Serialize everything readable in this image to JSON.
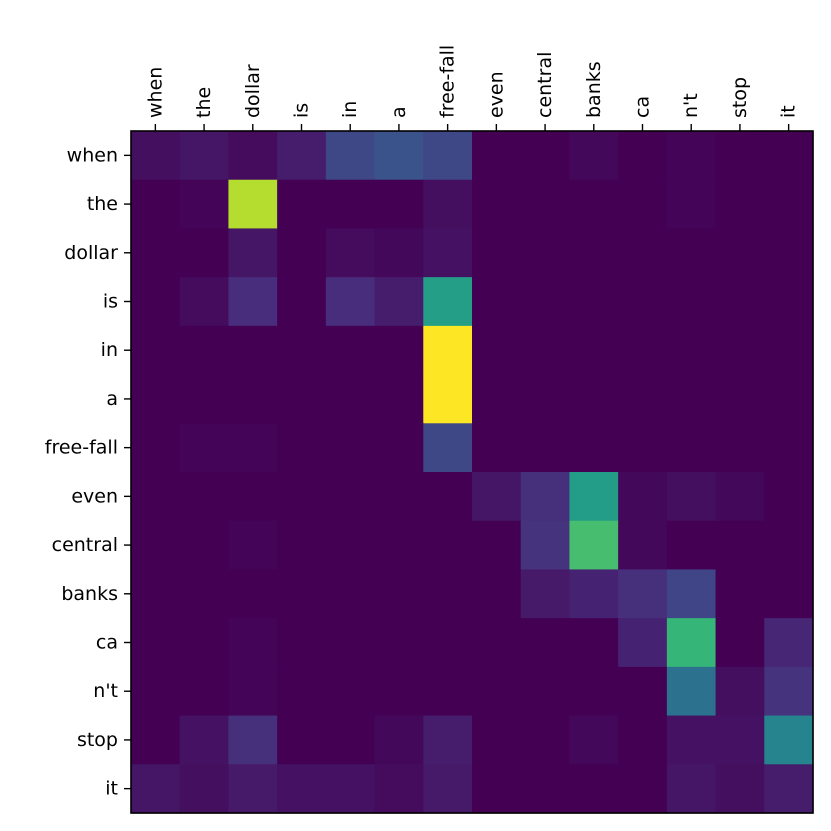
{
  "chart_data": {
    "type": "heatmap",
    "title": "",
    "xlabel": "",
    "ylabel": "",
    "colormap": "viridis",
    "value_range": [
      0,
      1
    ],
    "grid": false,
    "x_tick_labels": [
      "when",
      "the",
      "dollar",
      "is",
      "in",
      "a",
      "free-fall",
      "even",
      "central",
      "banks",
      "ca",
      "n't",
      "stop",
      "it"
    ],
    "y_tick_labels": [
      "when",
      "the",
      "dollar",
      "is",
      "in",
      "a",
      "free-fall",
      "even",
      "central",
      "banks",
      "ca",
      "n't",
      "stop",
      "it"
    ],
    "values": [
      [
        0.04,
        0.06,
        0.03,
        0.08,
        0.22,
        0.26,
        0.22,
        0.0,
        0.0,
        0.02,
        0.0,
        0.01,
        0.0,
        0.0
      ],
      [
        0.0,
        0.01,
        0.89,
        0.0,
        0.0,
        0.0,
        0.04,
        0.0,
        0.0,
        0.0,
        0.0,
        0.01,
        0.0,
        0.0
      ],
      [
        0.0,
        0.0,
        0.06,
        0.0,
        0.03,
        0.02,
        0.05,
        0.0,
        0.0,
        0.0,
        0.0,
        0.0,
        0.0,
        0.0
      ],
      [
        0.0,
        0.03,
        0.13,
        0.0,
        0.13,
        0.08,
        0.56,
        0.0,
        0.0,
        0.0,
        0.0,
        0.0,
        0.0,
        0.0
      ],
      [
        0.0,
        0.0,
        0.0,
        0.0,
        0.0,
        0.0,
        1.0,
        0.0,
        0.0,
        0.0,
        0.0,
        0.0,
        0.0,
        0.0
      ],
      [
        0.0,
        0.0,
        0.0,
        0.0,
        0.0,
        0.0,
        1.0,
        0.0,
        0.0,
        0.0,
        0.0,
        0.0,
        0.0,
        0.0
      ],
      [
        0.0,
        0.01,
        0.01,
        0.0,
        0.0,
        0.0,
        0.22,
        0.0,
        0.0,
        0.0,
        0.0,
        0.0,
        0.0,
        0.0
      ],
      [
        0.0,
        0.0,
        0.0,
        0.0,
        0.0,
        0.0,
        0.0,
        0.06,
        0.14,
        0.55,
        0.02,
        0.04,
        0.02,
        0.0
      ],
      [
        0.0,
        0.0,
        0.01,
        0.0,
        0.0,
        0.0,
        0.0,
        0.0,
        0.15,
        0.7,
        0.02,
        0.0,
        0.0,
        0.0
      ],
      [
        0.0,
        0.0,
        0.0,
        0.0,
        0.0,
        0.0,
        0.0,
        0.0,
        0.07,
        0.1,
        0.14,
        0.21,
        0.0,
        0.0
      ],
      [
        0.0,
        0.0,
        0.01,
        0.0,
        0.0,
        0.0,
        0.0,
        0.0,
        0.0,
        0.0,
        0.1,
        0.66,
        0.0,
        0.11
      ],
      [
        0.0,
        0.0,
        0.01,
        0.0,
        0.0,
        0.0,
        0.0,
        0.0,
        0.0,
        0.0,
        0.0,
        0.38,
        0.04,
        0.15
      ],
      [
        0.0,
        0.05,
        0.14,
        0.0,
        0.0,
        0.02,
        0.08,
        0.0,
        0.0,
        0.02,
        0.0,
        0.05,
        0.05,
        0.45
      ],
      [
        0.06,
        0.04,
        0.07,
        0.05,
        0.05,
        0.03,
        0.07,
        0.0,
        0.0,
        0.0,
        0.0,
        0.06,
        0.04,
        0.08
      ]
    ]
  }
}
